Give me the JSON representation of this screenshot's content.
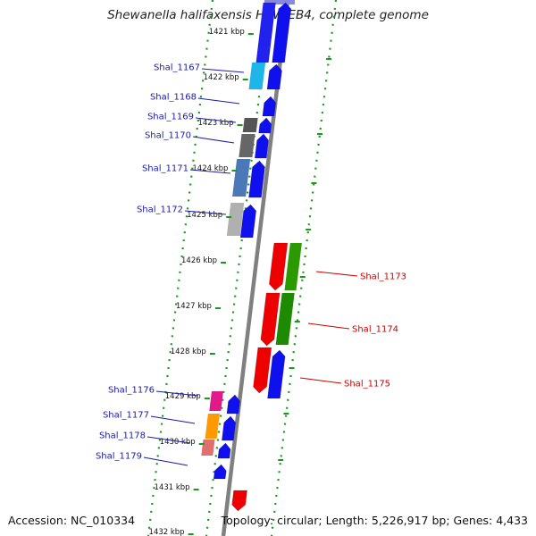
{
  "title": "Shewanella halifaxensis HAW-EB4, complete genome",
  "footer": {
    "accession": "Accession: NC_010334",
    "summary": "Topology: circular; Length: 5,226,917 bp; Genes: 4,433"
  },
  "scale": {
    "ticks": [
      "1421 kbp",
      "1422 kbp",
      "1423 kbp",
      "1424 kbp",
      "1425 kbp",
      "1426 kbp",
      "1427 kbp",
      "1428 kbp",
      "1429 kbp",
      "1430 kbp",
      "1431 kbp",
      "1432 kbp"
    ]
  },
  "genes": [
    {
      "name": "Shal_1167",
      "strand": "minus",
      "color": "#1fb5e8"
    },
    {
      "name": "Shal_1168",
      "strand": "minus",
      "color": "#1010ee"
    },
    {
      "name": "Shal_1169",
      "strand": "minus",
      "color": "#555555"
    },
    {
      "name": "Shal_1170",
      "strand": "minus",
      "color": "#555555"
    },
    {
      "name": "Shal_1171",
      "strand": "minus",
      "color": "#4a78b8"
    },
    {
      "name": "Shal_1172",
      "strand": "minus",
      "color": "#a8a8a8"
    },
    {
      "name": "Shal_1173",
      "strand": "plus",
      "color": "#33aa00"
    },
    {
      "name": "Shal_1174",
      "strand": "plus",
      "color": "#228800"
    },
    {
      "name": "Shal_1175",
      "strand": "plus",
      "color": "#1010ee"
    },
    {
      "name": "Shal_1176",
      "strand": "minus",
      "color": "#e01a8a"
    },
    {
      "name": "Shal_1177",
      "strand": "minus",
      "color": "#ff9900"
    },
    {
      "name": "Shal_1178",
      "strand": "minus",
      "color": "#e07070"
    },
    {
      "name": "Shal_1179",
      "strand": "minus",
      "color": "#1010ee"
    }
  ],
  "colors": {
    "forward": "#1010ee",
    "reverse": "#ee0000",
    "backbone": "#808080",
    "gc_skew_ticks": "#1a9a1a",
    "label_minus": "#1a1aa8",
    "label_plus": "#cc0000"
  }
}
